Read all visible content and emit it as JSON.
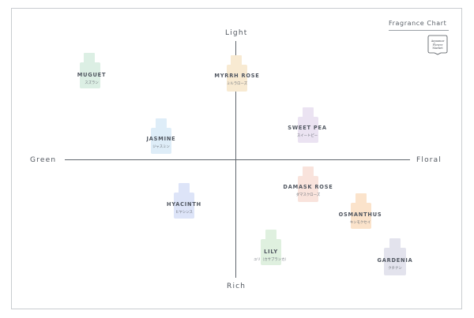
{
  "title": "Fragrance Chart",
  "logo": {
    "line1": "Aquamar",
    "line2": "Flower",
    "line3": "Market"
  },
  "axes": {
    "top": "Light",
    "bottom": "Rich",
    "left": "Green",
    "right": "Floral"
  },
  "fragrances": [
    {
      "name": "MUGUET",
      "kana": "スズラン",
      "color": "#dcefe4"
    },
    {
      "name": "MYRRH ROSE",
      "kana": "ミルラローズ",
      "color": "#f8ead2"
    },
    {
      "name": "SWEET PEA",
      "kana": "スイートピー",
      "color": "#ebe3f2"
    },
    {
      "name": "JASMINE",
      "kana": "ジャスミン",
      "color": "#deedf8"
    },
    {
      "name": "DAMASK ROSE",
      "kana": "ダマスクローズ",
      "color": "#f9e3dc"
    },
    {
      "name": "HYACINTH",
      "kana": "ヒヤシンス",
      "color": "#dde4f8"
    },
    {
      "name": "OSMANTHUS",
      "kana": "キンモクセイ",
      "color": "#fbe3cb"
    },
    {
      "name": "LILY",
      "kana": "ユリ（カサブランカ）",
      "color": "#dff0df"
    },
    {
      "name": "GARDENIA",
      "kana": "クチナシ",
      "color": "#e3e3ed"
    }
  ]
}
